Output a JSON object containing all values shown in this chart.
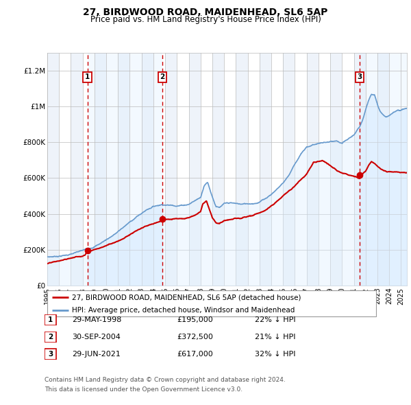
{
  "title": "27, BIRDWOOD ROAD, MAIDENHEAD, SL6 5AP",
  "subtitle": "Price paid vs. HM Land Registry's House Price Index (HPI)",
  "legend_line1": "27, BIRDWOOD ROAD, MAIDENHEAD, SL6 5AP (detached house)",
  "legend_line2": "HPI: Average price, detached house, Windsor and Maidenhead",
  "footer_line1": "Contains HM Land Registry data © Crown copyright and database right 2024.",
  "footer_line2": "This data is licensed under the Open Government Licence v3.0.",
  "transactions": [
    {
      "num": 1,
      "date_label": "29-MAY-1998",
      "price_label": "£195,000",
      "pct_label": "22% ↓ HPI"
    },
    {
      "num": 2,
      "date_label": "30-SEP-2004",
      "price_label": "£372,500",
      "pct_label": "21% ↓ HPI"
    },
    {
      "num": 3,
      "date_label": "29-JUN-2021",
      "price_label": "£617,000",
      "pct_label": "32% ↓ HPI"
    }
  ],
  "sale_dates_decimal": [
    1998.41,
    2004.75,
    2021.49
  ],
  "sale_prices": [
    195000,
    372500,
    617000
  ],
  "price_color": "#cc0000",
  "hpi_color": "#6699cc",
  "hpi_fill_color": "#ddeeff",
  "vline_color": "#cc0000",
  "band_colors": [
    "#eef3fa",
    "#ffffff"
  ],
  "grid_color": "#bbbbbb",
  "ylim": [
    0,
    1300000
  ],
  "xlim_start": 1995.0,
  "xlim_end": 2025.5,
  "yticks": [
    0,
    200000,
    400000,
    600000,
    800000,
    1000000,
    1200000
  ],
  "ytick_labels": [
    "£0",
    "£200K",
    "£400K",
    "£600K",
    "£800K",
    "£1M",
    "£1.2M"
  ],
  "xtick_years": [
    1995,
    1996,
    1997,
    1998,
    1999,
    2000,
    2001,
    2002,
    2003,
    2004,
    2005,
    2006,
    2007,
    2008,
    2009,
    2010,
    2011,
    2012,
    2013,
    2014,
    2015,
    2016,
    2017,
    2018,
    2019,
    2020,
    2021,
    2022,
    2023,
    2024,
    2025
  ]
}
